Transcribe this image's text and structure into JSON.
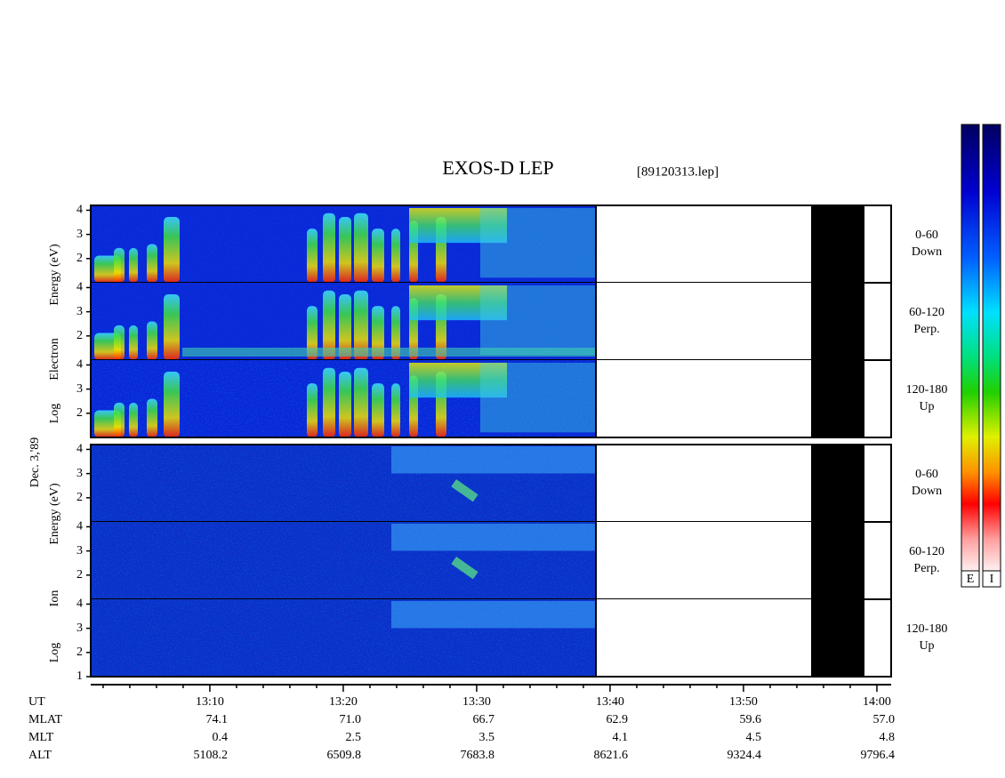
{
  "chart_data": {
    "type": "spectrogram",
    "title": "EXOS-D LEP",
    "subtitle": "[89120313.lep]",
    "date_label": "Dec. 3,'89",
    "xlim": [
      781.07,
      841.07
    ],
    "xticks": [
      {
        "value": 790,
        "label": "13:10"
      },
      {
        "value": 800,
        "label": "13:20"
      },
      {
        "value": 810,
        "label": "13:30"
      },
      {
        "value": 820,
        "label": "13:40"
      },
      {
        "value": 830,
        "label": "13:50"
      },
      {
        "value": 840,
        "label": "14:00"
      }
    ],
    "xminorticks": [
      782,
      784,
      786,
      788,
      792,
      794,
      796,
      798,
      802,
      804,
      806,
      808,
      812,
      814,
      816,
      818,
      822,
      824,
      826,
      828,
      832,
      834,
      836,
      838
    ],
    "panels": [
      {
        "ylabel": [
          "Log",
          "Electron",
          "Energy (eV)"
        ],
        "subpanels": [
          {
            "labels": [
              "0-60",
              "Down"
            ],
            "ylim": [
              1,
              4.2
            ],
            "yticks": [
              2,
              3,
              4
            ]
          },
          {
            "labels": [
              "60-120",
              "Perp."
            ],
            "ylim": [
              1,
              4.2
            ],
            "yticks": [
              2,
              3,
              4
            ]
          },
          {
            "labels": [
              "120-180",
              "Up"
            ],
            "ylim": [
              1,
              4.2
            ],
            "yticks": [
              2,
              3,
              4
            ]
          }
        ]
      },
      {
        "ylabel": [
          "Log",
          "Ion",
          "Energy (eV)"
        ],
        "subpanels": [
          {
            "labels": [
              "0-60",
              "Down"
            ],
            "ylim": [
              1,
              4.2
            ],
            "yticks": [
              2,
              3,
              4
            ]
          },
          {
            "labels": [
              "60-120",
              "Perp."
            ],
            "ylim": [
              1,
              4.2
            ],
            "yticks": [
              2,
              3,
              4
            ]
          },
          {
            "labels": [
              "120-180",
              "Up"
            ],
            "ylim": [
              1,
              4.2
            ],
            "yticks": [
              1,
              2,
              3,
              4
            ]
          }
        ]
      }
    ],
    "ut_label": "UT",
    "ephemeris": [
      {
        "name": "MLAT",
        "values": [
          "74.1",
          "71.0",
          "66.7",
          "62.9",
          "59.6",
          "57.0"
        ]
      },
      {
        "name": "MLT",
        "values": [
          "0.4",
          "2.5",
          "3.5",
          "4.1",
          "4.5",
          "4.8"
        ]
      },
      {
        "name": "ALT",
        "values": [
          "5108.2",
          "6509.8",
          "7683.8",
          "8621.6",
          "9324.4",
          "9796.4"
        ]
      }
    ],
    "colorbar_labels": [
      "E",
      "I"
    ]
  }
}
